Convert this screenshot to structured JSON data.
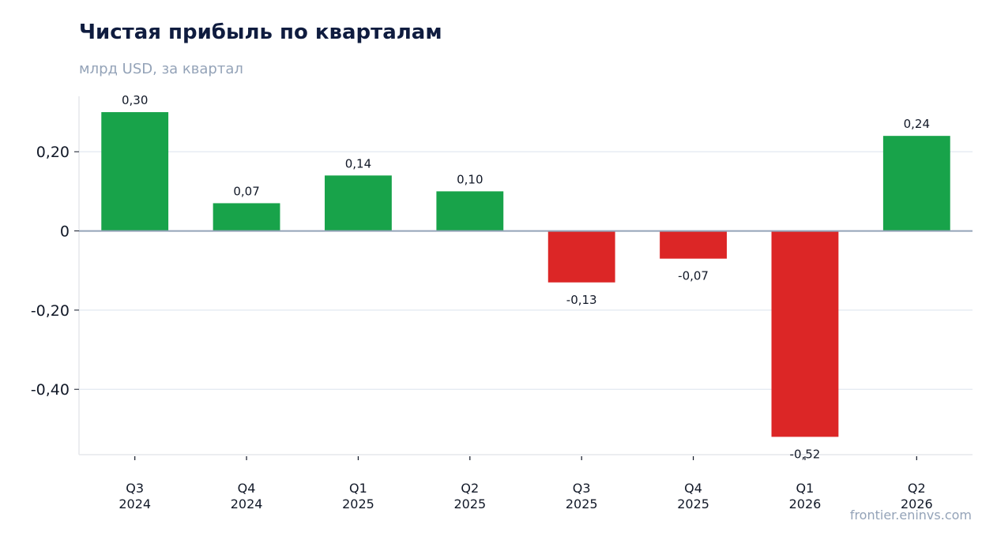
{
  "header": {
    "title": "Чистая прибыль по кварталам",
    "subtitle": "млрд USD, за квартал"
  },
  "footer": {
    "source": "frontier.eninvs.com"
  },
  "colors": {
    "positive": "#18a34a",
    "negative": "#dc2626",
    "grid": "#e2e8f0",
    "zero_line": "#94a3b8",
    "axis": "#e5e7eb"
  },
  "chart_data": {
    "type": "bar",
    "title": "Чистая прибыль по кварталам",
    "subtitle": "млрд USD, за квартал",
    "categories": [
      [
        "Q3",
        "2024"
      ],
      [
        "Q4",
        "2024"
      ],
      [
        "Q1",
        "2025"
      ],
      [
        "Q2",
        "2025"
      ],
      [
        "Q3",
        "2025"
      ],
      [
        "Q4",
        "2025"
      ],
      [
        "Q1",
        "2026"
      ],
      [
        "Q2",
        "2026"
      ]
    ],
    "values": [
      0.3,
      0.07,
      0.14,
      0.1,
      -0.13,
      -0.07,
      -0.52,
      0.24
    ],
    "value_labels": [
      "0,30",
      "0,07",
      "0,14",
      "0,10",
      "-0,13",
      "-0,07",
      "-0,52",
      "0,24"
    ],
    "yticks": [
      0.2,
      0,
      -0.2,
      -0.4
    ],
    "ytick_labels": [
      "0,20",
      "0",
      "-0,20",
      "-0,40"
    ],
    "ylim": [
      -0.565,
      0.34
    ],
    "grid": true,
    "legend": "none"
  }
}
